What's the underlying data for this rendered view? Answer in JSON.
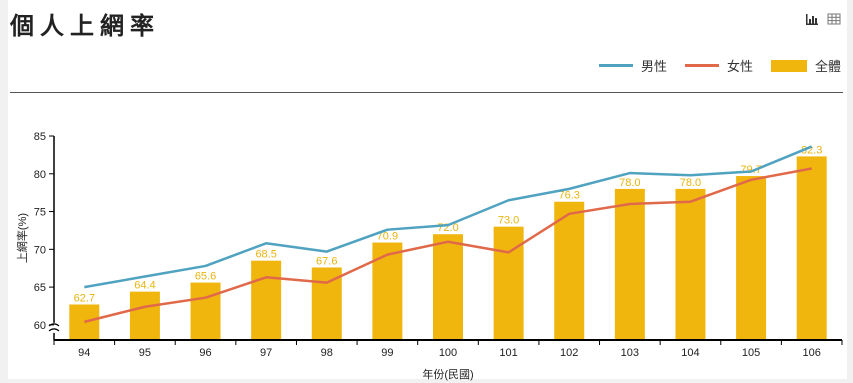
{
  "page": {
    "title": "個人上網率"
  },
  "toolbar": {
    "chart_icon": "bar-chart-icon",
    "table_icon": "table-grid-icon"
  },
  "colors": {
    "male": "#4fa2c0",
    "female": "#e0694a",
    "all": "#f1b60e",
    "axis": "#000000"
  },
  "legend": {
    "male": "男性",
    "female": "女性",
    "all": "全體"
  },
  "chart_data": {
    "type": "bar",
    "categories": [
      "94",
      "95",
      "96",
      "97",
      "98",
      "99",
      "100",
      "101",
      "102",
      "103",
      "104",
      "105",
      "106"
    ],
    "series": [
      {
        "name": "全體",
        "type": "bar",
        "values": [
          62.7,
          64.4,
          65.6,
          68.5,
          67.6,
          70.9,
          72.0,
          73.0,
          76.3,
          78.0,
          78.0,
          79.7,
          82.3
        ],
        "labels": [
          "62.7",
          "64.4",
          "65.6",
          "68.5",
          "67.6",
          "70.9",
          "72.0",
          "73.0",
          "76.3",
          "78.0",
          "78.0",
          "79.7",
          "82.3"
        ]
      },
      {
        "name": "男性",
        "type": "line",
        "values": [
          65.0,
          66.4,
          67.8,
          70.8,
          69.7,
          72.6,
          73.2,
          76.5,
          78.0,
          80.1,
          79.8,
          80.3,
          83.6
        ]
      },
      {
        "name": "女性",
        "type": "line",
        "values": [
          60.4,
          62.4,
          63.6,
          66.3,
          65.6,
          69.3,
          71.0,
          69.6,
          74.7,
          76.0,
          76.3,
          79.2,
          80.7
        ]
      }
    ],
    "xlabel": "年份(民國)",
    "ylabel": "上網率(%)",
    "ylim": [
      58,
      85
    ],
    "yticks": [
      "60",
      "65",
      "70",
      "75",
      "80",
      "85"
    ],
    "axis_break": true,
    "grid": false,
    "legend_position": "top-right"
  }
}
